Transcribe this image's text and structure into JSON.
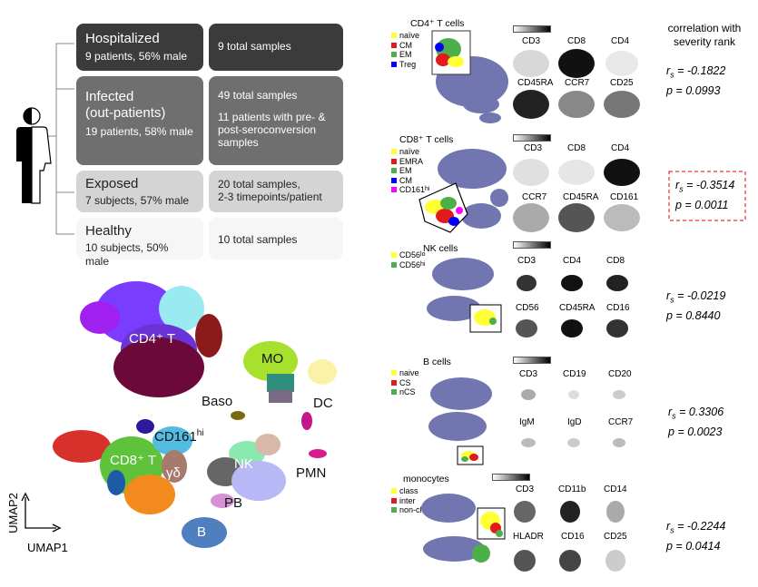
{
  "cohorts": [
    {
      "title": "Hospitalized",
      "subtitle": "9 patients, 56% male",
      "samples": [
        "9 total samples"
      ]
    },
    {
      "title": "Infected",
      "title2": "(out-patients)",
      "subtitle": "19 patients, 58% male",
      "samples": [
        "49 total samples",
        "11 patients with pre- &",
        "post-seroconversion",
        "samples"
      ]
    },
    {
      "title": "Exposed",
      "subtitle": "7 subjects, 57% male",
      "samples": [
        "20 total samples,",
        "2-3 timepoints/patient"
      ]
    },
    {
      "title": "Healthy",
      "subtitle": "10 subjects, 50% male",
      "samples": [
        "10 total samples"
      ]
    }
  ],
  "umap": {
    "labels": {
      "cd4": "CD4⁺ T",
      "cd8": "CD8⁺ T",
      "cd161": "CD161",
      "cd161_sup": "hi",
      "gd": "γδ",
      "mo": "MO",
      "dc": "DC",
      "baso": "Baso",
      "nk": "NK",
      "pmn": "PMN",
      "pb": "PB",
      "b": "B"
    },
    "axis_x": "UMAP1",
    "axis_y": "UMAP2"
  },
  "correlation_header": [
    "correlation with",
    "severity rank"
  ],
  "panels": [
    {
      "title": "CD4⁺ T cells",
      "legend": [
        {
          "label": "naïve",
          "color": "#ffff33"
        },
        {
          "label": "CM",
          "color": "#e31a1c"
        },
        {
          "label": "EM",
          "color": "#4daf4a"
        },
        {
          "label": "Treg",
          "color": "#0000ff"
        }
      ],
      "markers": [
        "CD3",
        "CD8",
        "CD4",
        "CD45RA",
        "CCR7",
        "CD25"
      ],
      "rs": "r",
      "rs_sub": "s",
      "rs_value": " = -0.1822",
      "p": "p = 0.0993",
      "highlight": false
    },
    {
      "title": "CD8⁺ T cells",
      "legend": [
        {
          "label": "naïve",
          "color": "#ffff33"
        },
        {
          "label": "EMRA",
          "color": "#e31a1c"
        },
        {
          "label": "EM",
          "color": "#4daf4a"
        },
        {
          "label": "CM",
          "color": "#0000ff"
        },
        {
          "label": "CD161",
          "sup": "hi",
          "color": "#ff00ff"
        }
      ],
      "markers": [
        "CD3",
        "CD8",
        "CD4",
        "CCR7",
        "CD45RA",
        "CD161"
      ],
      "rs": "r",
      "rs_sub": "s",
      "rs_value": " = -0.3514",
      "p": "p = 0.0011",
      "highlight": true
    },
    {
      "title": "NK cells",
      "legend": [
        {
          "label": "CD56",
          "sup": "lo",
          "color": "#ffff33"
        },
        {
          "label": "CD56",
          "sup": "hi",
          "color": "#4daf4a"
        }
      ],
      "markers": [
        "CD3",
        "CD4",
        "CD8",
        "CD56",
        "CD45RA",
        "CD16"
      ],
      "rs": "r",
      "rs_sub": "s",
      "rs_value": " = -0.0219",
      "p": "p = 0.8440",
      "highlight": false
    },
    {
      "title": "B cells",
      "legend": [
        {
          "label": "naive",
          "color": "#ffff33"
        },
        {
          "label": "CS",
          "color": "#e31a1c"
        },
        {
          "label": "nCS",
          "color": "#4daf4a"
        }
      ],
      "markers": [
        "CD3",
        "CD19",
        "CD20",
        "IgM",
        "IgD",
        "CCR7"
      ],
      "rs": "r",
      "rs_sub": "s",
      "rs_value": " = 0.3306",
      "p": "p = 0.0023",
      "highlight": false
    },
    {
      "title": "monocytes",
      "legend": [
        {
          "label": "class",
          "color": "#ffff33"
        },
        {
          "label": "inter",
          "color": "#e31a1c"
        },
        {
          "label": "non-class",
          "color": "#4daf4a"
        }
      ],
      "markers": [
        "CD3",
        "CD11b",
        "CD14",
        "HLADR",
        "CD16",
        "CD25"
      ],
      "rs": "r",
      "rs_sub": "s",
      "rs_value": " = -0.2244",
      "p": "p = 0.0414",
      "highlight": false
    }
  ]
}
